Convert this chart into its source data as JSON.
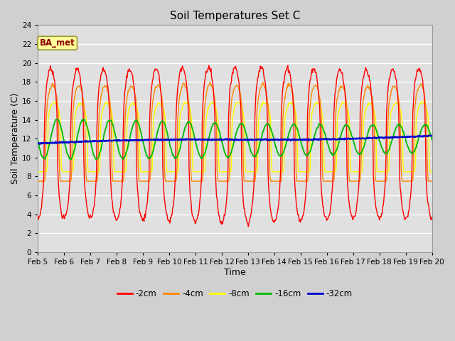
{
  "title": "Soil Temperatures Set C",
  "xlabel": "Time",
  "ylabel": "Soil Temperature (C)",
  "ylim": [
    0,
    24
  ],
  "yticks": [
    0,
    2,
    4,
    6,
    8,
    10,
    12,
    14,
    16,
    18,
    20,
    22,
    24
  ],
  "date_labels": [
    "Feb 5",
    "Feb 6",
    "Feb 7",
    "Feb 8",
    "Feb 9",
    "Feb 10",
    "Feb 11",
    "Feb 12",
    "Feb 13",
    "Feb 14",
    "Feb 15",
    "Feb 16",
    "Feb 17",
    "Feb 18",
    "Feb 19",
    "Feb 20"
  ],
  "legend_labels": [
    "-2cm",
    "-4cm",
    "-8cm",
    "-16cm",
    "-32cm"
  ],
  "legend_colors": [
    "#ff0000",
    "#ff8800",
    "#ffff00",
    "#00bb00",
    "#0000cc"
  ],
  "line_widths": [
    1.0,
    1.0,
    1.0,
    1.3,
    1.8
  ],
  "annotation_text": "BA_met",
  "fig_facecolor": "#d0d0d0",
  "ax_facecolor": "#e0e0e0",
  "grid_color": "#ffffff",
  "days": 15,
  "n_points": 720
}
